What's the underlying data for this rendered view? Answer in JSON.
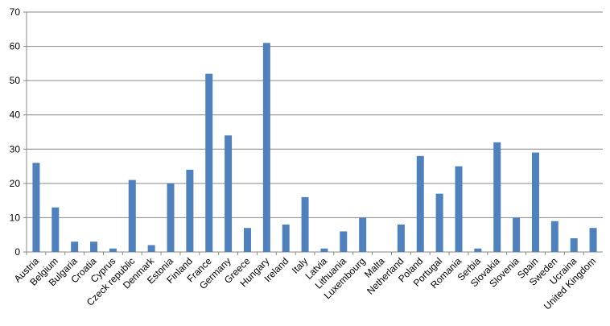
{
  "chart_data": {
    "type": "bar",
    "categories": [
      "Austria",
      "Belgium",
      "Bulgaria",
      "Croatia",
      "Cyprus",
      "Czeck republic",
      "Denmark",
      "Estonia",
      "Finland",
      "France",
      "Germany",
      "Greece",
      "Hungary",
      "Ireland",
      "Italy",
      "Latvia",
      "Lithuania",
      "Luxembourg",
      "Malta",
      "Netherland",
      "Poland",
      "Portugal",
      "Romania",
      "Serbia",
      "Slovakia",
      "Slovenia",
      "Spain",
      "Sweden",
      "Ucraina",
      "United Kingdom"
    ],
    "values": [
      26,
      13,
      3,
      3,
      1,
      21,
      2,
      20,
      24,
      52,
      34,
      7,
      61,
      8,
      16,
      1,
      6,
      10,
      0,
      8,
      28,
      17,
      25,
      1,
      32,
      10,
      29,
      9,
      4,
      7
    ],
    "color": "#4f81bd",
    "ylim": [
      0,
      70
    ],
    "yticks": [
      0,
      10,
      20,
      30,
      40,
      50,
      60,
      70
    ],
    "grid": true
  }
}
